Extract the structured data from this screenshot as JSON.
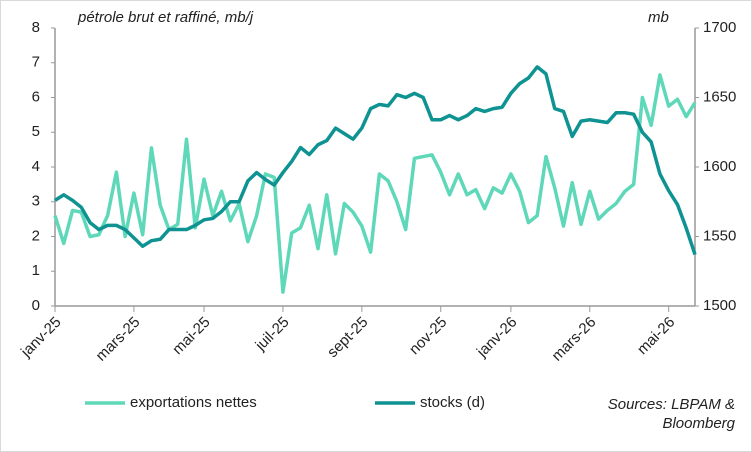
{
  "chart_data": {
    "type": "line",
    "title": "pétrole brut et raffiné, mb/j",
    "y2_label": "mb",
    "source": [
      "Sources: LBPAM &",
      "Bloomberg"
    ],
    "categories": [
      "janv-25",
      null,
      null,
      null,
      null,
      null,
      null,
      null,
      null,
      "mars-25",
      null,
      null,
      null,
      null,
      null,
      null,
      null,
      "mai-25",
      null,
      null,
      null,
      null,
      null,
      null,
      null,
      null,
      "juil-25",
      null,
      null,
      null,
      null,
      null,
      null,
      null,
      null,
      "sept-25",
      null,
      null,
      null,
      null,
      null,
      null,
      null,
      null,
      "nov-25",
      null,
      null,
      null,
      null,
      null,
      null,
      null,
      "janv-26",
      null,
      null,
      null,
      null,
      null,
      null,
      null,
      null,
      "mars-26",
      null,
      null,
      null,
      null,
      null,
      null,
      null,
      null,
      "mai-26",
      null,
      null,
      null
    ],
    "series": [
      {
        "name": "exportations nettes",
        "color": "#5fd8b9",
        "axis": "y",
        "values": [
          2.6,
          1.8,
          2.75,
          2.7,
          2.0,
          2.05,
          2.6,
          3.85,
          2.0,
          3.25,
          2.05,
          4.55,
          2.9,
          2.2,
          2.35,
          4.8,
          2.25,
          3.65,
          2.6,
          3.3,
          2.45,
          2.95,
          1.85,
          2.6,
          3.8,
          3.7,
          0.4,
          2.1,
          2.25,
          2.9,
          1.65,
          3.2,
          1.5,
          2.95,
          2.7,
          2.3,
          1.55,
          3.8,
          3.6,
          3.0,
          2.2,
          4.25,
          4.3,
          4.35,
          3.85,
          3.2,
          3.8,
          3.2,
          3.35,
          2.8,
          3.4,
          3.25,
          3.8,
          3.3,
          2.4,
          2.6,
          4.3,
          3.4,
          2.3,
          3.55,
          2.35,
          3.3,
          2.5,
          2.75,
          2.95,
          3.3,
          3.5,
          6.0,
          5.2,
          6.65,
          5.75,
          5.95,
          5.45,
          5.85
        ]
      },
      {
        "name": "stocks (d)",
        "color": "#0e9292",
        "axis": "y2",
        "values": [
          1576,
          1580,
          1576,
          1571,
          1560,
          1555,
          1558,
          1558,
          1555,
          1549,
          1543,
          1547,
          1548,
          1555,
          1555,
          1555,
          1558,
          1562,
          1563,
          1568,
          1575,
          1575,
          1590,
          1596,
          1591,
          1587,
          1596,
          1604,
          1614,
          1609,
          1616,
          1619,
          1628,
          1624,
          1620,
          1628,
          1642,
          1645,
          1644,
          1652,
          1650,
          1653,
          1650,
          1634,
          1634,
          1637,
          1634,
          1637,
          1642,
          1640,
          1642,
          1643,
          1653,
          1660,
          1664,
          1672,
          1667,
          1642,
          1640,
          1622,
          1633,
          1634,
          1633,
          1632,
          1639,
          1639,
          1638,
          1625,
          1618,
          1595,
          1583,
          1573,
          1556,
          1537
        ]
      }
    ],
    "ylim": [
      0,
      8
    ],
    "yticks": [
      0,
      1,
      2,
      3,
      4,
      5,
      6,
      7,
      8
    ],
    "y2lim": [
      1500,
      1700
    ],
    "y2ticks": [
      1500,
      1550,
      1600,
      1650,
      1700
    ],
    "grid": false
  }
}
